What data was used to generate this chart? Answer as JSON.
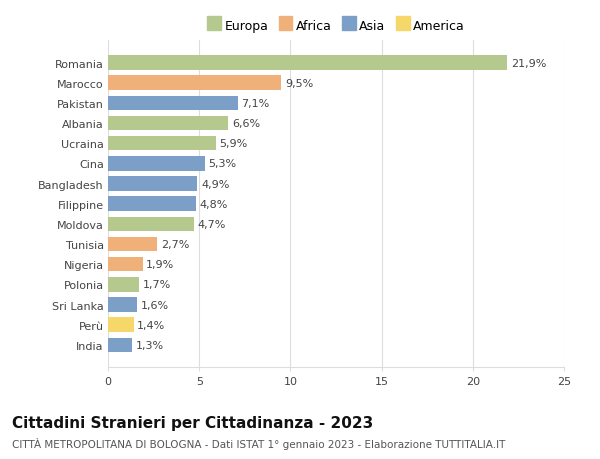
{
  "countries": [
    "Romania",
    "Marocco",
    "Pakistan",
    "Albania",
    "Ucraina",
    "Cina",
    "Bangladesh",
    "Filippine",
    "Moldova",
    "Tunisia",
    "Nigeria",
    "Polonia",
    "Sri Lanka",
    "Perù",
    "India"
  ],
  "values": [
    21.9,
    9.5,
    7.1,
    6.6,
    5.9,
    5.3,
    4.9,
    4.8,
    4.7,
    2.7,
    1.9,
    1.7,
    1.6,
    1.4,
    1.3
  ],
  "continents": [
    "Europa",
    "Africa",
    "Asia",
    "Europa",
    "Europa",
    "Asia",
    "Asia",
    "Asia",
    "Europa",
    "Africa",
    "Africa",
    "Europa",
    "Asia",
    "America",
    "Asia"
  ],
  "continent_colors": {
    "Europa": "#b5c98e",
    "Africa": "#f0b07a",
    "Asia": "#7b9fc7",
    "America": "#f5d76a"
  },
  "legend_order": [
    "Europa",
    "Africa",
    "Asia",
    "America"
  ],
  "xlim": [
    0,
    25
  ],
  "xticks": [
    0,
    5,
    10,
    15,
    20,
    25
  ],
  "title": "Cittadini Stranieri per Cittadinanza - 2023",
  "subtitle": "CITTÀ METROPOLITANA DI BOLOGNA - Dati ISTAT 1° gennaio 2023 - Elaborazione TUTTITALIA.IT",
  "bg_color": "#ffffff",
  "grid_color": "#dddddd",
  "bar_height": 0.72,
  "label_fontsize": 8,
  "tick_fontsize": 8,
  "title_fontsize": 11,
  "subtitle_fontsize": 7.5
}
